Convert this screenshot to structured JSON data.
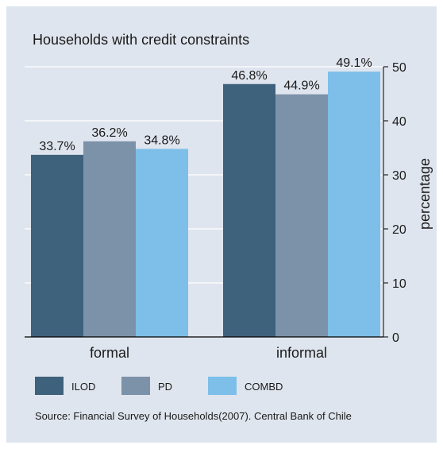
{
  "colors": {
    "background": "#dfe5ee",
    "gridline": "#ffffff",
    "axis": "#000000"
  },
  "chart_data": {
    "type": "bar",
    "title": "Households with credit constraints",
    "ylabel": "percentage",
    "xlabel": "",
    "categories": [
      "formal",
      "informal"
    ],
    "series": [
      {
        "name": "ILOD",
        "color": "#3e617c",
        "values": [
          33.7,
          46.8
        ],
        "labels": [
          "33.7%",
          "46.8%"
        ]
      },
      {
        "name": "PD",
        "color": "#7c92a9",
        "values": [
          36.2,
          44.9
        ],
        "labels": [
          "36.2%",
          "44.9%"
        ]
      },
      {
        "name": "COMBD",
        "color": "#7dbfe9",
        "values": [
          34.8,
          49.1
        ],
        "labels": [
          "34.8%",
          "49.1%"
        ]
      }
    ],
    "ylim": [
      0,
      50
    ],
    "yticks": [
      0,
      10,
      20,
      30,
      40,
      50
    ],
    "yaxis_position": "right",
    "grid": true,
    "legend_position": "bottom-left",
    "source": "Source: Financial Survey of Households(2007). Central Bank of Chile"
  }
}
